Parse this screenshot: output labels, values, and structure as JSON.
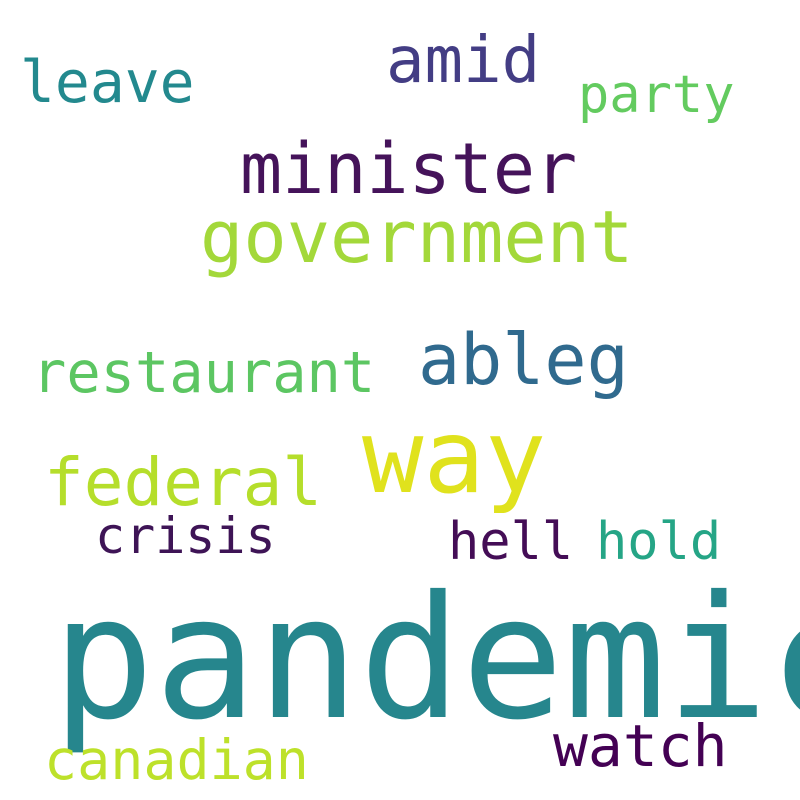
{
  "words": [
    {
      "id": "pandemic",
      "text": "pandemic",
      "color": "#26868d"
    },
    {
      "id": "way",
      "text": "way",
      "color": "#e0e21d"
    },
    {
      "id": "minister",
      "text": "minister",
      "color": "#45135a"
    },
    {
      "id": "government",
      "text": "government",
      "color": "#a3d83a"
    },
    {
      "id": "ableg",
      "text": "ableg",
      "color": "#306a8e"
    },
    {
      "id": "restaurant",
      "text": "restaurant",
      "color": "#5cc662"
    },
    {
      "id": "federal",
      "text": "federal",
      "color": "#b5de2b"
    },
    {
      "id": "amid",
      "text": "amid",
      "color": "#433d84"
    },
    {
      "id": "leave",
      "text": "leave",
      "color": "#23898e"
    },
    {
      "id": "party",
      "text": "party",
      "color": "#63cb5f"
    },
    {
      "id": "crisis",
      "text": "crisis",
      "color": "#3e1456"
    },
    {
      "id": "hell",
      "text": "hell",
      "color": "#440d56"
    },
    {
      "id": "hold",
      "text": "hold",
      "color": "#25a586"
    },
    {
      "id": "watch",
      "text": "watch",
      "color": "#440154"
    },
    {
      "id": "canadian",
      "text": "canadian",
      "color": "#bde12a"
    }
  ]
}
